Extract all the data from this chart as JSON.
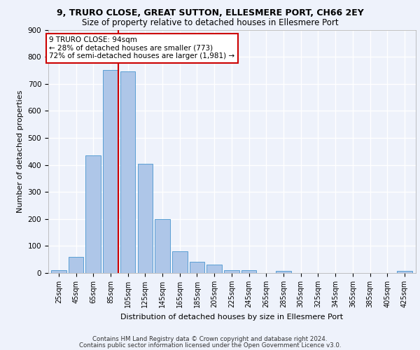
{
  "title1": "9, TRURO CLOSE, GREAT SUTTON, ELLESMERE PORT, CH66 2EY",
  "title2": "Size of property relative to detached houses in Ellesmere Port",
  "xlabel": "Distribution of detached houses by size in Ellesmere Port",
  "ylabel": "Number of detached properties",
  "bins": [
    25,
    45,
    65,
    85,
    105,
    125,
    145,
    165,
    185,
    205,
    225,
    245,
    265,
    285,
    305,
    325,
    345,
    365,
    385,
    405,
    425
  ],
  "values": [
    10,
    60,
    435,
    750,
    745,
    405,
    200,
    80,
    42,
    30,
    10,
    10,
    0,
    8,
    0,
    0,
    0,
    0,
    0,
    0,
    8
  ],
  "bar_color": "#aec6e8",
  "bar_edge_color": "#5a9fd4",
  "property_size": 94,
  "vline_color": "#cc0000",
  "annotation_title": "9 TRURO CLOSE: 94sqm",
  "annotation_line1": "← 28% of detached houses are smaller (773)",
  "annotation_line2": "72% of semi-detached houses are larger (1,981) →",
  "annotation_box_color": "#ffffff",
  "annotation_border_color": "#cc0000",
  "footer1": "Contains HM Land Registry data © Crown copyright and database right 2024.",
  "footer2": "Contains public sector information licensed under the Open Government Licence v3.0.",
  "ylim": [
    0,
    900
  ],
  "yticks": [
    0,
    100,
    200,
    300,
    400,
    500,
    600,
    700,
    800,
    900
  ],
  "background_color": "#eef2fb",
  "grid_color": "#ffffff"
}
